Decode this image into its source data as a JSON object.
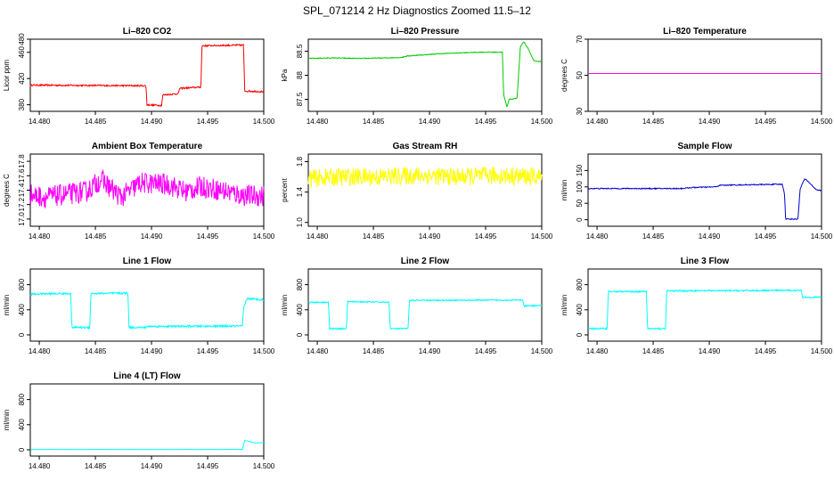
{
  "figure": {
    "title": "SPL_071214  2 Hz Diagnostics Zoomed 11.5–12"
  },
  "chart_data": [
    {
      "type": "line",
      "title": "Li–820 CO2",
      "xlabel": "",
      "ylabel": "Licor ppm",
      "xlim": [
        14.4792,
        14.5
      ],
      "ylim": [
        370,
        480
      ],
      "xticks": [
        "14.480",
        "14.485",
        "14.490",
        "14.495",
        "14.500"
      ],
      "yticks": [
        {
          "value": 380,
          "label": "380"
        },
        {
          "value": 420,
          "label": "420"
        },
        {
          "value": 460,
          "label": "460"
        },
        {
          "value": 480,
          "label": "480"
        }
      ],
      "grid": false,
      "series": [
        {
          "color": "#ff0000",
          "noise": 1.2,
          "x": [
            14.4792,
            14.4895,
            14.4896,
            14.4909,
            14.491,
            14.4924,
            14.4925,
            14.4944,
            14.4945,
            14.4982,
            14.4983,
            14.5
          ],
          "y": [
            410,
            409,
            380,
            379,
            395,
            397,
            405,
            407,
            470,
            471,
            401,
            400
          ]
        }
      ]
    },
    {
      "type": "line",
      "title": "Li–820 Pressure",
      "xlabel": "",
      "ylabel": "kPa",
      "xlim": [
        14.4792,
        14.5
      ],
      "ylim": [
        87.25,
        88.75
      ],
      "xticks": [
        "14.480",
        "14.485",
        "14.490",
        "14.495",
        "14.500"
      ],
      "yticks": [
        {
          "value": 87.5,
          "label": "87.5"
        },
        {
          "value": 88,
          "label": "88"
        },
        {
          "value": 88.5,
          "label": "88.5"
        }
      ],
      "grid": false,
      "series": [
        {
          "color": "#00cc00",
          "noise": 0.008,
          "x": [
            14.4792,
            14.4815,
            14.4835,
            14.486,
            14.4875,
            14.488,
            14.491,
            14.4945,
            14.4965,
            14.4966,
            14.4969,
            14.4971,
            14.4978,
            14.4981,
            14.4984,
            14.4988,
            14.4993,
            14.5
          ],
          "y": [
            88.35,
            88.36,
            88.35,
            88.36,
            88.37,
            88.4,
            88.45,
            88.48,
            88.48,
            87.6,
            87.34,
            87.5,
            87.52,
            88.6,
            88.7,
            88.55,
            88.3,
            88.28
          ]
        }
      ]
    },
    {
      "type": "line",
      "title": "Li–820 Temperature",
      "xlabel": "",
      "ylabel": "degrees C",
      "xlim": [
        14.4792,
        14.5
      ],
      "ylim": [
        30,
        70
      ],
      "xticks": [
        "14.480",
        "14.485",
        "14.490",
        "14.495",
        "14.500"
      ],
      "yticks": [
        {
          "value": 30,
          "label": "30"
        },
        {
          "value": 50,
          "label": "50"
        },
        {
          "value": 70,
          "label": "70"
        }
      ],
      "grid": false,
      "series": [
        {
          "color": "#ff00ff",
          "noise": 0,
          "x": [
            14.4792,
            14.5
          ],
          "y": [
            51,
            51
          ]
        }
      ]
    },
    {
      "type": "line",
      "title": "Ambient Box Temperature",
      "xlabel": "",
      "ylabel": "degrees C",
      "xlim": [
        14.4792,
        14.5
      ],
      "ylim": [
        16.9,
        17.9
      ],
      "xticks": [
        "14.480",
        "14.485",
        "14.490",
        "14.495",
        "14.500"
      ],
      "yticks": [
        {
          "value": 17.0,
          "label": "17.0"
        },
        {
          "value": 17.2,
          "label": "17.2"
        },
        {
          "value": 17.4,
          "label": "17.4"
        },
        {
          "value": 17.6,
          "label": "17.6"
        },
        {
          "value": 17.8,
          "label": "17.8"
        }
      ],
      "grid": false,
      "series": [
        {
          "color": "#ff00ff",
          "noise": 0.15,
          "x": [
            14.4792,
            14.4805,
            14.4842,
            14.4855,
            14.4873,
            14.489,
            14.4915,
            14.493,
            14.4945,
            14.4968,
            14.498,
            14.5
          ],
          "y": [
            17.34,
            17.3,
            17.38,
            17.55,
            17.3,
            17.5,
            17.48,
            17.38,
            17.45,
            17.38,
            17.33,
            17.32
          ]
        }
      ]
    },
    {
      "type": "line",
      "title": "Gas Stream RH",
      "xlabel": "",
      "ylabel": "percent",
      "xlim": [
        14.4792,
        14.5
      ],
      "ylim": [
        0.95,
        1.9
      ],
      "xticks": [
        "14.480",
        "14.485",
        "14.490",
        "14.495",
        "14.500"
      ],
      "yticks": [
        {
          "value": 1.0,
          "label": "1.0"
        },
        {
          "value": 1.4,
          "label": "1.4"
        },
        {
          "value": 1.8,
          "label": "1.8"
        }
      ],
      "grid": false,
      "series": [
        {
          "color": "#ffff00",
          "noise": 0.12,
          "x": [
            14.4792,
            14.482,
            14.4855,
            14.489,
            14.4925,
            14.496,
            14.5
          ],
          "y": [
            1.58,
            1.6,
            1.6,
            1.62,
            1.6,
            1.62,
            1.6
          ]
        }
      ]
    },
    {
      "type": "line",
      "title": "Sample Flow",
      "xlabel": "",
      "ylabel": "ml/min",
      "xlim": [
        14.4792,
        14.5
      ],
      "ylim": [
        -20,
        200
      ],
      "xticks": [
        "14.480",
        "14.485",
        "14.490",
        "14.495",
        "14.500"
      ],
      "yticks": [
        {
          "value": 0,
          "label": "0"
        },
        {
          "value": 50,
          "label": "50"
        },
        {
          "value": 100,
          "label": "100"
        },
        {
          "value": 150,
          "label": "150"
        }
      ],
      "grid": false,
      "series": [
        {
          "color": "#0000cc",
          "noise": 1.5,
          "x": [
            14.4792,
            14.4875,
            14.4885,
            14.4905,
            14.491,
            14.4965,
            14.4967,
            14.4968,
            14.4979,
            14.4981,
            14.4985,
            14.499,
            14.4995,
            14.5
          ],
          "y": [
            95,
            95,
            98,
            100,
            105,
            108,
            80,
            2,
            2,
            95,
            125,
            110,
            92,
            88
          ]
        }
      ]
    },
    {
      "type": "line",
      "title": "Line 1 Flow",
      "xlabel": "",
      "ylabel": "ml/min",
      "xlim": [
        14.4792,
        14.5
      ],
      "ylim": [
        -100,
        1050
      ],
      "xticks": [
        "14.480",
        "14.485",
        "14.490",
        "14.495",
        "14.500"
      ],
      "yticks": [
        {
          "value": 0,
          "label": "0"
        },
        {
          "value": 400,
          "label": "400"
        },
        {
          "value": 800,
          "label": "800"
        }
      ],
      "grid": false,
      "series": [
        {
          "color": "#00ffff",
          "noise": 15,
          "x": [
            14.4792,
            14.4828,
            14.4829,
            14.4845,
            14.4846,
            14.4879,
            14.488,
            14.4895,
            14.4896,
            14.4981,
            14.4982,
            14.4985,
            14.5
          ],
          "y": [
            650,
            660,
            120,
            118,
            660,
            665,
            118,
            118,
            135,
            140,
            420,
            580,
            560
          ]
        }
      ]
    },
    {
      "type": "line",
      "title": "Line 2 Flow",
      "xlabel": "",
      "ylabel": "ml/min",
      "xlim": [
        14.4792,
        14.5
      ],
      "ylim": [
        -100,
        1050
      ],
      "xticks": [
        "14.480",
        "14.485",
        "14.490",
        "14.495",
        "14.500"
      ],
      "yticks": [
        {
          "value": 0,
          "label": "0"
        },
        {
          "value": 400,
          "label": "400"
        },
        {
          "value": 800,
          "label": "800"
        }
      ],
      "grid": false,
      "series": [
        {
          "color": "#00ffff",
          "noise": 10,
          "x": [
            14.4792,
            14.481,
            14.4811,
            14.4826,
            14.4827,
            14.4864,
            14.4865,
            14.4881,
            14.4882,
            14.4983,
            14.4984,
            14.5
          ],
          "y": [
            520,
            520,
            100,
            100,
            530,
            520,
            100,
            100,
            550,
            555,
            460,
            470
          ]
        }
      ]
    },
    {
      "type": "line",
      "title": "Line 3 Flow",
      "xlabel": "",
      "ylabel": "ml/min",
      "xlim": [
        14.4792,
        14.5
      ],
      "ylim": [
        -100,
        1050
      ],
      "xticks": [
        "14.480",
        "14.485",
        "14.490",
        "14.495",
        "14.500"
      ],
      "yticks": [
        {
          "value": 0,
          "label": "0"
        },
        {
          "value": 400,
          "label": "400"
        },
        {
          "value": 800,
          "label": "800"
        }
      ],
      "grid": false,
      "series": [
        {
          "color": "#00ffff",
          "noise": 12,
          "x": [
            14.4792,
            14.4809,
            14.481,
            14.4844,
            14.4845,
            14.4861,
            14.4862,
            14.4982,
            14.4983,
            14.5
          ],
          "y": [
            100,
            100,
            690,
            690,
            100,
            100,
            700,
            710,
            600,
            600
          ]
        }
      ]
    },
    {
      "type": "line",
      "title": "Line 4 (LT) Flow",
      "xlabel": "",
      "ylabel": "ml/min",
      "xlim": [
        14.4792,
        14.5
      ],
      "ylim": [
        -100,
        1050
      ],
      "xticks": [
        "14.480",
        "14.485",
        "14.490",
        "14.495",
        "14.500"
      ],
      "yticks": [
        {
          "value": 0,
          "label": "0"
        },
        {
          "value": 400,
          "label": "400"
        },
        {
          "value": 800,
          "label": "800"
        }
      ],
      "grid": false,
      "series": [
        {
          "color": "#00ffff",
          "noise": 2,
          "x": [
            14.4792,
            14.4981,
            14.4983,
            14.4987,
            14.4993,
            14.5
          ],
          "y": [
            5,
            5,
            150,
            130,
            110,
            115
          ]
        }
      ]
    }
  ]
}
